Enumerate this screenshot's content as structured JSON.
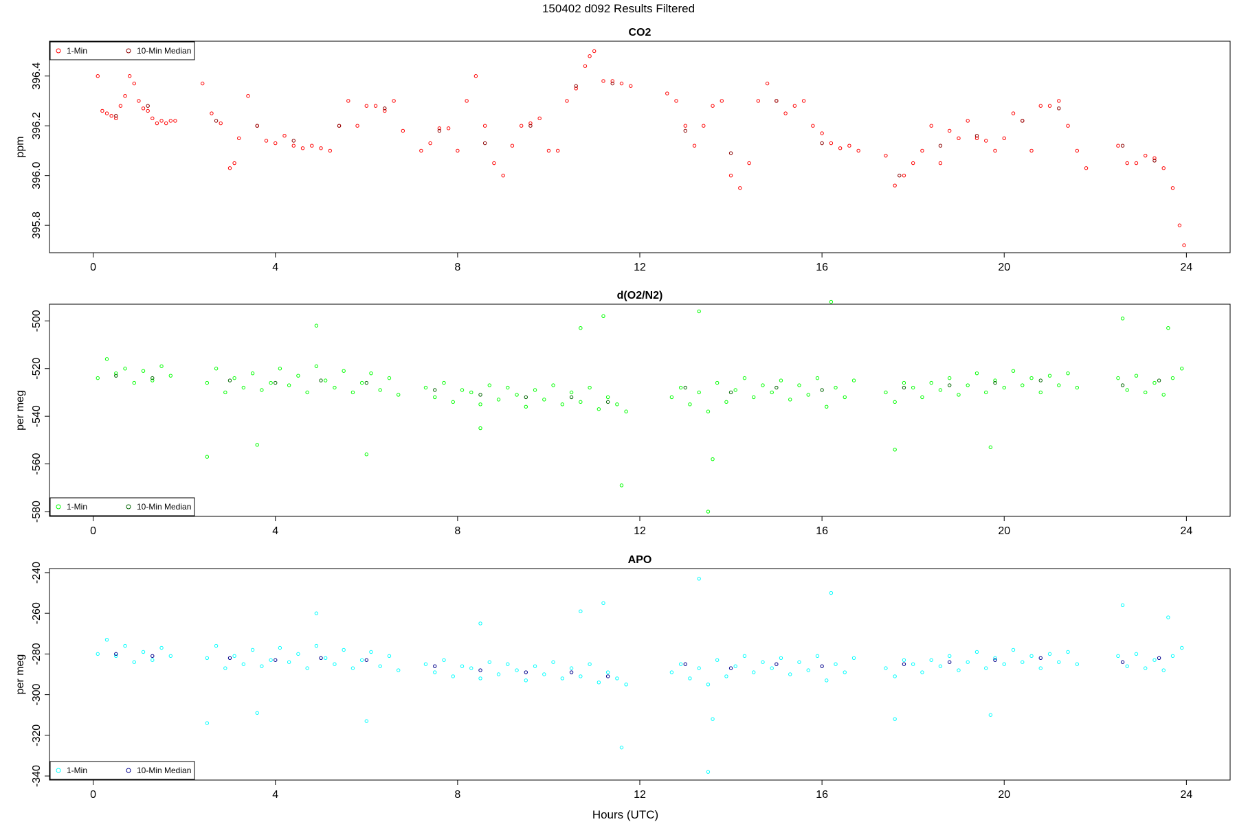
{
  "figure": {
    "title": "150402    d092    Results Filtered",
    "xlabel": "Hours (UTC)"
  },
  "chart_data": [
    {
      "type": "scatter",
      "title": "CO2",
      "ylabel": "ppm",
      "xlim": [
        -0.96,
        24.96
      ],
      "ylim": [
        395.69,
        396.54
      ],
      "xticks": [
        "0",
        "4",
        "8",
        "12",
        "16",
        "20",
        "24"
      ],
      "xtick_values": [
        0,
        4,
        8,
        12,
        16,
        20,
        24
      ],
      "yticks": [
        "395.8",
        "396.0",
        "396.2",
        "396.4"
      ],
      "ytick_values": [
        395.8,
        396.0,
        396.2,
        396.4
      ],
      "legend": {
        "position": "top-left",
        "entries": [
          "1-Min",
          "10-Min Median"
        ]
      },
      "colors": {
        "raw": "#ff0000",
        "median": "#8b0000"
      },
      "series": [
        {
          "name": "1-Min",
          "x": [
            0.1,
            0.2,
            0.3,
            0.4,
            0.5,
            0.6,
            0.7,
            0.8,
            0.9,
            1.0,
            1.1,
            1.2,
            1.3,
            1.4,
            1.5,
            1.6,
            1.7,
            1.8,
            2.4,
            2.6,
            2.8,
            3.0,
            3.1,
            3.2,
            3.4,
            3.6,
            3.8,
            4.0,
            4.2,
            4.4,
            4.6,
            4.8,
            5.0,
            5.2,
            5.4,
            5.6,
            5.8,
            6.0,
            6.2,
            6.4,
            6.6,
            6.8,
            7.2,
            7.4,
            7.6,
            7.8,
            8.0,
            8.2,
            8.4,
            8.6,
            8.8,
            9.0,
            9.2,
            9.4,
            9.6,
            9.8,
            10.0,
            10.2,
            10.4,
            10.6,
            10.8,
            10.9,
            11.0,
            11.2,
            11.4,
            11.6,
            11.8,
            12.6,
            12.8,
            13.0,
            13.2,
            13.4,
            13.6,
            13.8,
            14.0,
            14.2,
            14.4,
            14.6,
            14.8,
            15.0,
            15.2,
            15.4,
            15.6,
            15.8,
            16.0,
            16.2,
            16.4,
            16.6,
            16.8,
            17.4,
            17.6,
            17.8,
            18.0,
            18.2,
            18.4,
            18.6,
            18.8,
            19.0,
            19.2,
            19.4,
            19.6,
            19.8,
            20.0,
            20.2,
            20.4,
            20.6,
            20.8,
            21.0,
            21.2,
            21.4,
            21.6,
            21.8,
            22.5,
            22.7,
            22.9,
            23.1,
            23.3,
            23.5,
            23.7,
            23.85,
            23.95
          ],
          "y": [
            396.4,
            396.26,
            396.25,
            396.24,
            396.23,
            396.28,
            396.32,
            396.4,
            396.37,
            396.3,
            396.27,
            396.26,
            396.23,
            396.21,
            396.22,
            396.21,
            396.22,
            396.22,
            396.37,
            396.25,
            396.21,
            396.03,
            396.05,
            396.15,
            396.32,
            396.2,
            396.14,
            396.13,
            396.16,
            396.12,
            396.11,
            396.12,
            396.11,
            396.1,
            396.2,
            396.3,
            396.2,
            396.28,
            396.28,
            396.26,
            396.3,
            396.18,
            396.1,
            396.13,
            396.19,
            396.19,
            396.1,
            396.3,
            396.4,
            396.2,
            396.05,
            396.0,
            396.12,
            396.2,
            396.21,
            396.23,
            396.1,
            396.1,
            396.3,
            396.35,
            396.44,
            396.48,
            396.5,
            396.38,
            396.38,
            396.37,
            396.36,
            396.33,
            396.3,
            396.2,
            396.12,
            396.2,
            396.28,
            396.3,
            396.0,
            395.95,
            396.05,
            396.3,
            396.37,
            396.3,
            396.25,
            396.28,
            396.3,
            396.2,
            396.17,
            396.13,
            396.11,
            396.12,
            396.1,
            396.08,
            395.96,
            396.0,
            396.05,
            396.1,
            396.2,
            396.05,
            396.18,
            396.15,
            396.22,
            396.15,
            396.14,
            396.1,
            396.15,
            396.25,
            396.22,
            396.1,
            396.28,
            396.28,
            396.3,
            396.2,
            396.1,
            396.03,
            396.12,
            396.05,
            396.05,
            396.08,
            396.07,
            396.03,
            395.95,
            395.8,
            395.72
          ]
        },
        {
          "name": "10-Min Median",
          "x": [
            0.5,
            1.2,
            2.7,
            3.6,
            4.4,
            5.4,
            6.4,
            7.6,
            8.6,
            9.6,
            10.6,
            11.4,
            13.0,
            14.0,
            15.0,
            16.0,
            17.7,
            18.6,
            19.4,
            20.4,
            21.2,
            22.6,
            23.3
          ],
          "y": [
            396.24,
            396.28,
            396.22,
            396.2,
            396.14,
            396.2,
            396.27,
            396.18,
            396.13,
            396.2,
            396.36,
            396.37,
            396.18,
            396.09,
            396.3,
            396.13,
            396.0,
            396.12,
            396.16,
            396.22,
            396.27,
            396.12,
            396.06
          ]
        }
      ]
    },
    {
      "type": "scatter",
      "title": "d(O2/N2)",
      "ylabel": "per meg",
      "xlim": [
        -0.96,
        24.96
      ],
      "ylim": [
        -582,
        -493
      ],
      "xticks": [
        "0",
        "4",
        "8",
        "12",
        "16",
        "20",
        "24"
      ],
      "xtick_values": [
        0,
        4,
        8,
        12,
        16,
        20,
        24
      ],
      "yticks": [
        "-580",
        "-560",
        "-540",
        "-520",
        "-500"
      ],
      "ytick_values": [
        -580,
        -560,
        -540,
        -520,
        -500
      ],
      "legend": {
        "position": "bottom-left",
        "entries": [
          "1-Min",
          "10-Min Median"
        ]
      },
      "colors": {
        "raw": "#00ff00",
        "median": "#006400"
      },
      "series": [
        {
          "name": "1-Min",
          "x": [
            0.1,
            0.3,
            0.5,
            0.7,
            0.9,
            1.1,
            1.3,
            1.5,
            1.7,
            2.5,
            2.7,
            2.9,
            3.1,
            3.3,
            3.5,
            3.7,
            3.9,
            4.1,
            4.3,
            4.5,
            4.7,
            4.9,
            5.1,
            5.3,
            5.5,
            5.7,
            5.9,
            6.1,
            6.3,
            6.5,
            6.7,
            7.3,
            7.5,
            7.7,
            7.9,
            8.1,
            8.3,
            8.5,
            8.7,
            8.9,
            9.1,
            9.3,
            9.5,
            9.7,
            9.9,
            10.1,
            10.3,
            10.5,
            10.7,
            10.9,
            11.1,
            11.3,
            11.5,
            11.7,
            12.7,
            12.9,
            13.1,
            13.3,
            13.5,
            13.7,
            13.9,
            14.1,
            14.3,
            14.5,
            14.7,
            14.9,
            15.1,
            15.3,
            15.5,
            15.7,
            15.9,
            16.1,
            16.3,
            16.5,
            16.7,
            17.4,
            17.6,
            17.8,
            18.0,
            18.2,
            18.4,
            18.6,
            18.8,
            19.0,
            19.2,
            19.4,
            19.6,
            19.8,
            20.0,
            20.2,
            20.4,
            20.6,
            20.8,
            21.0,
            21.2,
            21.4,
            21.6,
            22.5,
            22.7,
            22.9,
            23.1,
            23.3,
            23.5,
            23.7,
            23.9,
            2.5,
            3.6,
            4.9,
            6.0,
            8.5,
            10.7,
            11.2,
            11.6,
            13.3,
            13.5,
            13.6,
            16.2,
            17.6,
            19.7,
            22.6,
            23.6
          ],
          "y": [
            -524,
            -516,
            -522,
            -520,
            -526,
            -521,
            -525,
            -519,
            -523,
            -526,
            -520,
            -530,
            -524,
            -528,
            -522,
            -529,
            -526,
            -520,
            -527,
            -523,
            -530,
            -519,
            -525,
            -528,
            -521,
            -530,
            -526,
            -522,
            -529,
            -524,
            -531,
            -528,
            -532,
            -526,
            -534,
            -529,
            -530,
            -535,
            -527,
            -533,
            -528,
            -531,
            -536,
            -529,
            -533,
            -527,
            -535,
            -530,
            -534,
            -528,
            -537,
            -532,
            -535,
            -538,
            -532,
            -528,
            -535,
            -530,
            -538,
            -526,
            -534,
            -529,
            -524,
            -532,
            -527,
            -530,
            -525,
            -533,
            -527,
            -531,
            -524,
            -536,
            -528,
            -532,
            -525,
            -530,
            -534,
            -526,
            -528,
            -532,
            -526,
            -529,
            -524,
            -531,
            -527,
            -522,
            -530,
            -525,
            -528,
            -521,
            -527,
            -524,
            -530,
            -523,
            -527,
            -522,
            -528,
            -524,
            -529,
            -523,
            -530,
            -526,
            -531,
            -524,
            -520,
            -557,
            -552,
            -502,
            -556,
            -545,
            -503,
            -498,
            -569,
            -496,
            -580,
            -558,
            -492,
            -554,
            -553,
            -499,
            -503
          ]
        },
        {
          "name": "10-Min Median",
          "x": [
            0.5,
            1.3,
            3.0,
            4.0,
            5.0,
            6.0,
            7.5,
            8.5,
            9.5,
            10.5,
            11.3,
            13.0,
            14.0,
            15.0,
            16.0,
            17.8,
            18.8,
            19.8,
            20.8,
            22.6,
            23.4
          ],
          "y": [
            -523,
            -524,
            -525,
            -526,
            -525,
            -526,
            -529,
            -531,
            -532,
            -532,
            -534,
            -528,
            -530,
            -528,
            -529,
            -528,
            -527,
            -526,
            -525,
            -527,
            -525
          ]
        }
      ]
    },
    {
      "type": "scatter",
      "title": "APO",
      "ylabel": "per meg",
      "xlim": [
        -0.96,
        24.96
      ],
      "ylim": [
        -342,
        -238
      ],
      "xticks": [
        "0",
        "4",
        "8",
        "12",
        "16",
        "20",
        "24"
      ],
      "xtick_values": [
        0,
        4,
        8,
        12,
        16,
        20,
        24
      ],
      "yticks": [
        "-340",
        "-320",
        "-300",
        "-280",
        "-260",
        "-240"
      ],
      "ytick_values": [
        -340,
        -320,
        -300,
        -280,
        -260,
        -240
      ],
      "legend": {
        "position": "bottom-left",
        "entries": [
          "1-Min",
          "10-Min Median"
        ]
      },
      "colors": {
        "raw": "#00ffff",
        "median": "#00008b"
      },
      "series": [
        {
          "name": "1-Min",
          "x": [
            0.1,
            0.3,
            0.5,
            0.7,
            0.9,
            1.1,
            1.3,
            1.5,
            1.7,
            2.5,
            2.7,
            2.9,
            3.1,
            3.3,
            3.5,
            3.7,
            3.9,
            4.1,
            4.3,
            4.5,
            4.7,
            4.9,
            5.1,
            5.3,
            5.5,
            5.7,
            5.9,
            6.1,
            6.3,
            6.5,
            6.7,
            7.3,
            7.5,
            7.7,
            7.9,
            8.1,
            8.3,
            8.5,
            8.7,
            8.9,
            9.1,
            9.3,
            9.5,
            9.7,
            9.9,
            10.1,
            10.3,
            10.5,
            10.7,
            10.9,
            11.1,
            11.3,
            11.5,
            11.7,
            12.7,
            12.9,
            13.1,
            13.3,
            13.5,
            13.7,
            13.9,
            14.1,
            14.3,
            14.5,
            14.7,
            14.9,
            15.1,
            15.3,
            15.5,
            15.7,
            15.9,
            16.1,
            16.3,
            16.5,
            16.7,
            17.4,
            17.6,
            17.8,
            18.0,
            18.2,
            18.4,
            18.6,
            18.8,
            19.0,
            19.2,
            19.4,
            19.6,
            19.8,
            20.0,
            20.2,
            20.4,
            20.6,
            20.8,
            21.0,
            21.2,
            21.4,
            21.6,
            22.5,
            22.7,
            22.9,
            23.1,
            23.3,
            23.5,
            23.7,
            23.9,
            2.5,
            3.6,
            4.9,
            6.0,
            8.5,
            10.7,
            11.2,
            11.6,
            13.3,
            13.5,
            13.6,
            16.2,
            17.6,
            19.7,
            22.6,
            23.6
          ],
          "y": [
            -280,
            -273,
            -281,
            -276,
            -284,
            -279,
            -283,
            -277,
            -281,
            -282,
            -276,
            -287,
            -281,
            -285,
            -278,
            -286,
            -283,
            -277,
            -284,
            -280,
            -287,
            -276,
            -282,
            -285,
            -278,
            -287,
            -283,
            -279,
            -286,
            -281,
            -288,
            -285,
            -289,
            -283,
            -291,
            -286,
            -287,
            -292,
            -284,
            -290,
            -285,
            -288,
            -293,
            -286,
            -290,
            -284,
            -292,
            -287,
            -291,
            -285,
            -294,
            -289,
            -292,
            -295,
            -289,
            -285,
            -292,
            -287,
            -295,
            -283,
            -291,
            -286,
            -281,
            -289,
            -284,
            -287,
            -282,
            -290,
            -284,
            -288,
            -281,
            -293,
            -285,
            -289,
            -282,
            -287,
            -291,
            -283,
            -285,
            -289,
            -283,
            -286,
            -281,
            -288,
            -284,
            -279,
            -287,
            -282,
            -285,
            -278,
            -284,
            -281,
            -287,
            -280,
            -284,
            -279,
            -285,
            -281,
            -286,
            -280,
            -287,
            -283,
            -288,
            -281,
            -277,
            -314,
            -309,
            -260,
            -313,
            -265,
            -259,
            -255,
            -326,
            -243,
            -338,
            -312,
            -250,
            -312,
            -310,
            -256,
            -262
          ]
        },
        {
          "name": "10-Min Median",
          "x": [
            0.5,
            1.3,
            3.0,
            4.0,
            5.0,
            6.0,
            7.5,
            8.5,
            9.5,
            10.5,
            11.3,
            13.0,
            14.0,
            15.0,
            16.0,
            17.8,
            18.8,
            19.8,
            20.8,
            22.6,
            23.4
          ],
          "y": [
            -280,
            -281,
            -282,
            -283,
            -282,
            -283,
            -286,
            -288,
            -289,
            -289,
            -291,
            -285,
            -287,
            -285,
            -286,
            -285,
            -284,
            -283,
            -282,
            -284,
            -282
          ]
        }
      ]
    }
  ]
}
